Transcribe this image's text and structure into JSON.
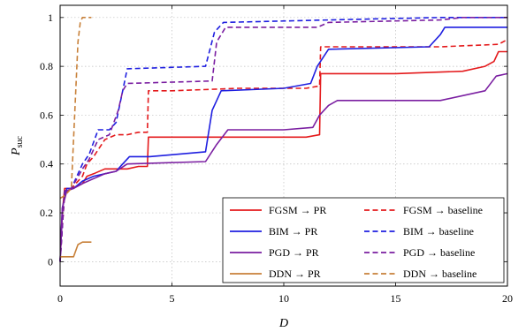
{
  "chart_data": {
    "type": "line",
    "title": "",
    "xlabel": "D",
    "ylabel": {
      "main": "P",
      "sub": "suc"
    },
    "xlim": [
      0,
      20
    ],
    "ylim": [
      -0.1,
      1.05
    ],
    "xticks": [
      0,
      5,
      10,
      15,
      20
    ],
    "yticks": [
      0,
      0.2,
      0.4,
      0.6,
      0.8,
      1
    ],
    "xtick_labels": [
      "0",
      "5",
      "10",
      "15",
      "20"
    ],
    "ytick_labels": [
      "0",
      "0.2",
      "0.4",
      "0.6",
      "0.8",
      "1"
    ],
    "grid": true,
    "legend_placement": "bottom-right",
    "series": [
      {
        "name": "FGSM → PR",
        "color": "#e41a1c",
        "dash": "solid",
        "x": [
          0,
          0.1,
          0.2,
          0.3,
          0.5,
          0.8,
          1.0,
          1.2,
          1.5,
          2.0,
          2.5,
          3.0,
          3.5,
          3.9,
          3.95,
          5,
          8,
          11,
          11.6,
          11.65,
          15,
          18,
          19,
          19.4,
          19.6,
          20
        ],
        "y": [
          0.0,
          0.2,
          0.3,
          0.3,
          0.3,
          0.31,
          0.32,
          0.35,
          0.36,
          0.38,
          0.38,
          0.38,
          0.39,
          0.39,
          0.51,
          0.51,
          0.51,
          0.51,
          0.52,
          0.77,
          0.77,
          0.78,
          0.8,
          0.82,
          0.86,
          0.86
        ]
      },
      {
        "name": "FGSM → baseline",
        "color": "#e41a1c",
        "dash": "dashed",
        "x": [
          0,
          0.2,
          0.5,
          1.0,
          1.2,
          1.5,
          2.0,
          2.5,
          3.0,
          3.5,
          3.9,
          3.95,
          5,
          8,
          11,
          11.6,
          11.65,
          15,
          17,
          19.6,
          20
        ],
        "y": [
          0.0,
          0.28,
          0.3,
          0.35,
          0.4,
          0.43,
          0.5,
          0.52,
          0.52,
          0.53,
          0.53,
          0.7,
          0.7,
          0.71,
          0.71,
          0.72,
          0.88,
          0.88,
          0.88,
          0.89,
          0.91
        ]
      },
      {
        "name": "BIM → PR",
        "color": "#1f1fe0",
        "dash": "solid",
        "x": [
          0,
          0.1,
          0.3,
          0.6,
          1.0,
          1.5,
          2.0,
          2.5,
          2.8,
          3.1,
          4.0,
          6.5,
          6.8,
          7.2,
          10,
          11.2,
          11.5,
          12,
          16.5,
          17,
          17.2,
          20
        ],
        "y": [
          0.0,
          0.22,
          0.3,
          0.3,
          0.33,
          0.35,
          0.36,
          0.37,
          0.4,
          0.43,
          0.43,
          0.45,
          0.62,
          0.7,
          0.71,
          0.73,
          0.8,
          0.87,
          0.88,
          0.93,
          0.96,
          0.96
        ]
      },
      {
        "name": "BIM → baseline",
        "color": "#1f1fe0",
        "dash": "dashed",
        "x": [
          0,
          0.2,
          0.5,
          1.0,
          1.3,
          1.7,
          2.2,
          2.5,
          2.8,
          3.0,
          6.5,
          6.9,
          7.3,
          12,
          17,
          18,
          20
        ],
        "y": [
          0.0,
          0.29,
          0.3,
          0.4,
          0.44,
          0.54,
          0.54,
          0.57,
          0.7,
          0.79,
          0.8,
          0.94,
          0.98,
          0.99,
          1.0,
          1.0,
          1.0
        ]
      },
      {
        "name": "PGD → PR",
        "color": "#7a1ea1",
        "dash": "solid",
        "x": [
          0,
          0.1,
          0.3,
          0.6,
          1.0,
          1.5,
          2.0,
          2.5,
          3.0,
          6.5,
          7.0,
          7.5,
          10,
          11.3,
          11.6,
          12.0,
          12.4,
          17,
          19,
          19.5,
          20
        ],
        "y": [
          0.0,
          0.22,
          0.29,
          0.3,
          0.32,
          0.34,
          0.36,
          0.37,
          0.4,
          0.41,
          0.48,
          0.54,
          0.54,
          0.55,
          0.6,
          0.64,
          0.66,
          0.66,
          0.7,
          0.76,
          0.77
        ]
      },
      {
        "name": "PGD → baseline",
        "color": "#7a1ea1",
        "dash": "dashed",
        "x": [
          0,
          0.2,
          0.5,
          1.0,
          1.3,
          1.7,
          2.2,
          2.6,
          2.8,
          3.0,
          6.8,
          7.0,
          7.4,
          11.5,
          12,
          17,
          18,
          20
        ],
        "y": [
          0.0,
          0.29,
          0.3,
          0.38,
          0.42,
          0.5,
          0.52,
          0.62,
          0.7,
          0.73,
          0.74,
          0.9,
          0.96,
          0.96,
          0.98,
          0.99,
          1.0,
          1.0
        ]
      },
      {
        "name": "DDN → PR",
        "color": "#c8813a",
        "dash": "solid",
        "x": [
          0,
          0.1,
          0.6,
          0.8,
          1.0,
          1.4
        ],
        "y": [
          0.02,
          0.02,
          0.02,
          0.07,
          0.08,
          0.08
        ]
      },
      {
        "name": "DDN → baseline",
        "color": "#c8813a",
        "dash": "dashed",
        "x": [
          0,
          0.2,
          0.5,
          0.6,
          0.8,
          0.9,
          1.0,
          1.4
        ],
        "y": [
          0.26,
          0.27,
          0.3,
          0.5,
          0.9,
          0.98,
          1.0,
          1.0
        ]
      }
    ]
  }
}
